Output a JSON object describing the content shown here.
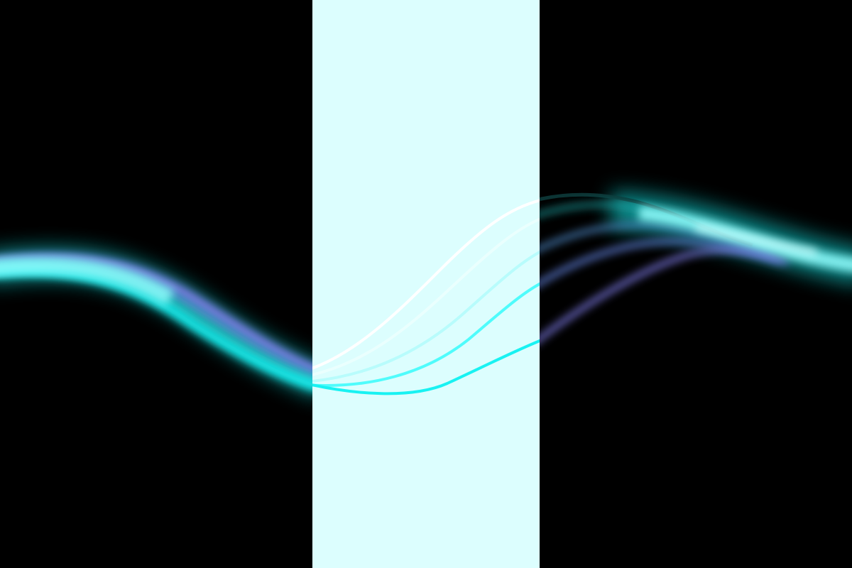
{
  "scene": {
    "background_color": "#000000",
    "center_band_color": "#dcfefe",
    "style_note_visible_text": ""
  },
  "colors": {
    "cyan": "#18f2f2",
    "cyan_bright": "#4ffcfc",
    "periwinkle": "#7a78e0",
    "steel_blue": "#4f8ccc",
    "teal": "#22b5b5",
    "white": "#ffffff",
    "pale_cyan": "#b8fcfc"
  },
  "waves": {
    "count": 5,
    "blurred_sides": true,
    "crisp_center_band": true
  }
}
